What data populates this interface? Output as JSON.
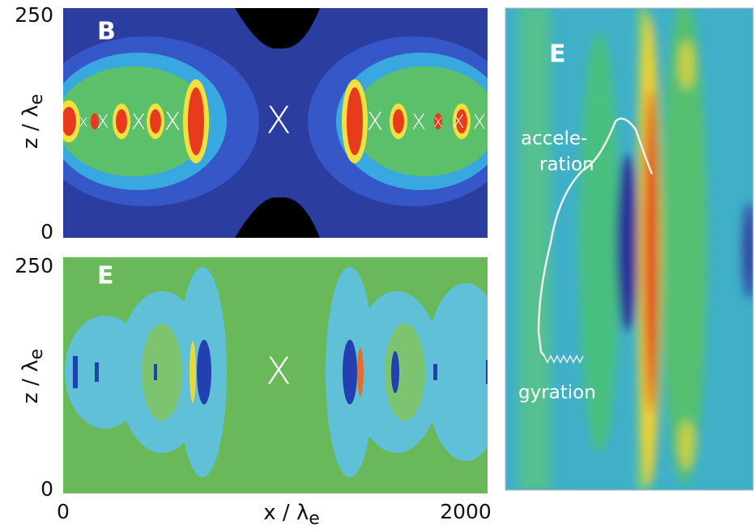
{
  "panels": [
    {
      "label": "B",
      "y_ticks": [
        "250",
        "0"
      ],
      "y_label": {
        "main": "z / λ",
        "sub": "e"
      },
      "markers": [
        "X",
        "X",
        "X",
        "X",
        "X",
        "X",
        "X",
        "X",
        "X",
        "X"
      ]
    },
    {
      "label": "E",
      "y_ticks": [
        "250",
        "0"
      ],
      "y_label": {
        "main": "z / λ",
        "sub": "e"
      },
      "x_ticks": [
        "0",
        "2000"
      ],
      "x_label": {
        "main": "x / λ",
        "sub": "e"
      },
      "markers": [
        "X"
      ]
    },
    {
      "label": "E",
      "annotations": [
        "accele-",
        "ration",
        "gyration"
      ]
    }
  ]
}
